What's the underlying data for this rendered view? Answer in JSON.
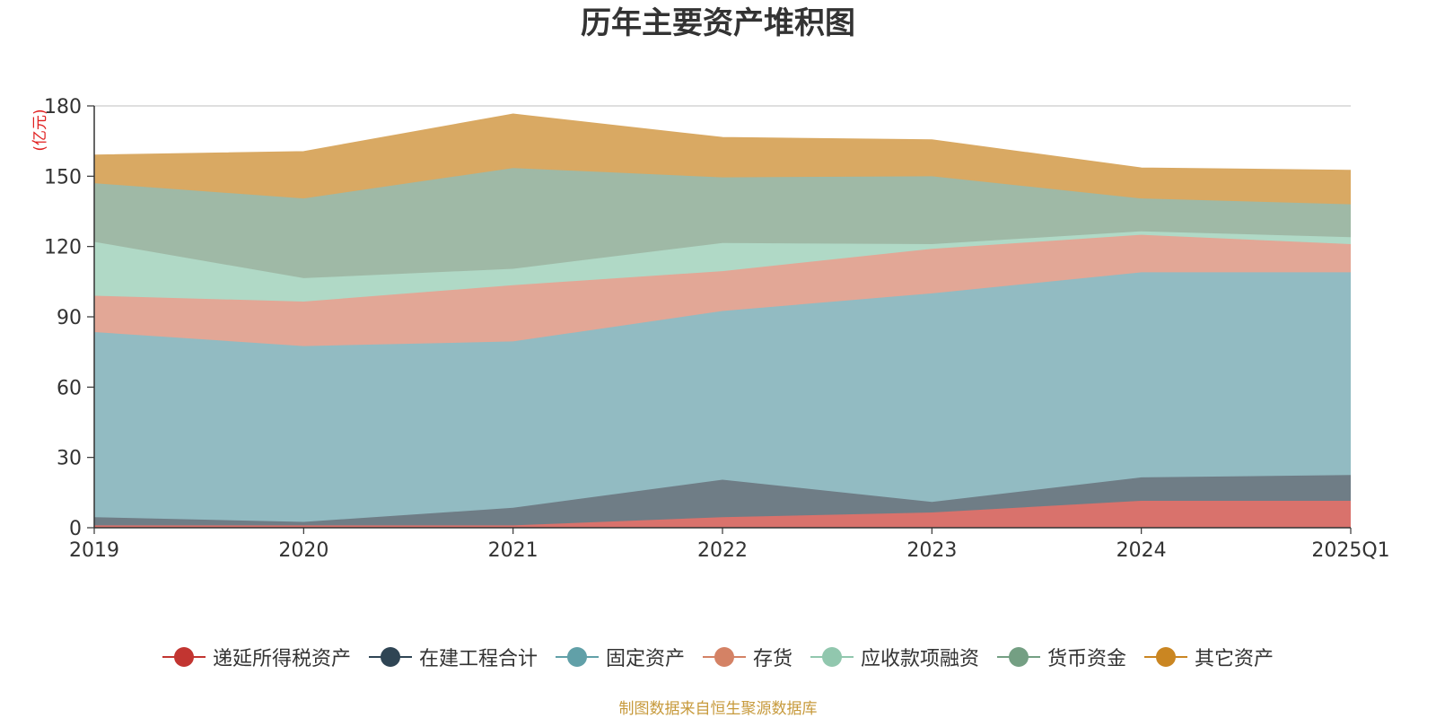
{
  "chart_data": {
    "type": "area",
    "stacked": true,
    "title": "历年主要资产堆积图",
    "unit": "(亿元)",
    "categories": [
      "2019",
      "2020",
      "2021",
      "2022",
      "2023",
      "2024",
      "2025Q1"
    ],
    "ylim": [
      0,
      180
    ],
    "yticks": [
      "0",
      "30",
      "60",
      "90",
      "120",
      "150",
      "180"
    ],
    "grid": true,
    "legend_position": "bottom",
    "series": [
      {
        "name": "递延所得税资产",
        "color": "#c23531",
        "fill": "#d9726c",
        "values": [
          1,
          1,
          1,
          4.5,
          6.5,
          11.5,
          11.5
        ]
      },
      {
        "name": "在建工程合计",
        "color": "#2f4554",
        "fill": "#6f7d86",
        "values": [
          3.5,
          1.5,
          7.5,
          16,
          4.5,
          10,
          11
        ]
      },
      {
        "name": "固定资产",
        "color": "#61a0a8",
        "fill": "#92bbc2",
        "values": [
          79,
          75,
          71,
          72,
          89,
          87.5,
          86.5
        ]
      },
      {
        "name": "存货",
        "color": "#d48265",
        "fill": "#e2a796",
        "values": [
          15.5,
          19,
          24,
          17,
          19,
          16,
          12
        ]
      },
      {
        "name": "应收款项融资",
        "color": "#91c7ae",
        "fill": "#b0d9c6",
        "values": [
          23,
          10,
          7,
          12,
          2,
          1.5,
          3
        ]
      },
      {
        "name": "货币资金",
        "color": "#749f83",
        "fill": "#9fb9a6",
        "values": [
          25,
          34,
          43,
          28,
          29,
          14,
          14
        ]
      },
      {
        "name": "其它资产",
        "color": "#ca8622",
        "fill": "#d9a963",
        "values": [
          12,
          20,
          23,
          17,
          15.5,
          13,
          14.5
        ]
      }
    ]
  },
  "footer": {
    "source": "制图数据来自恒生聚源数据库"
  }
}
